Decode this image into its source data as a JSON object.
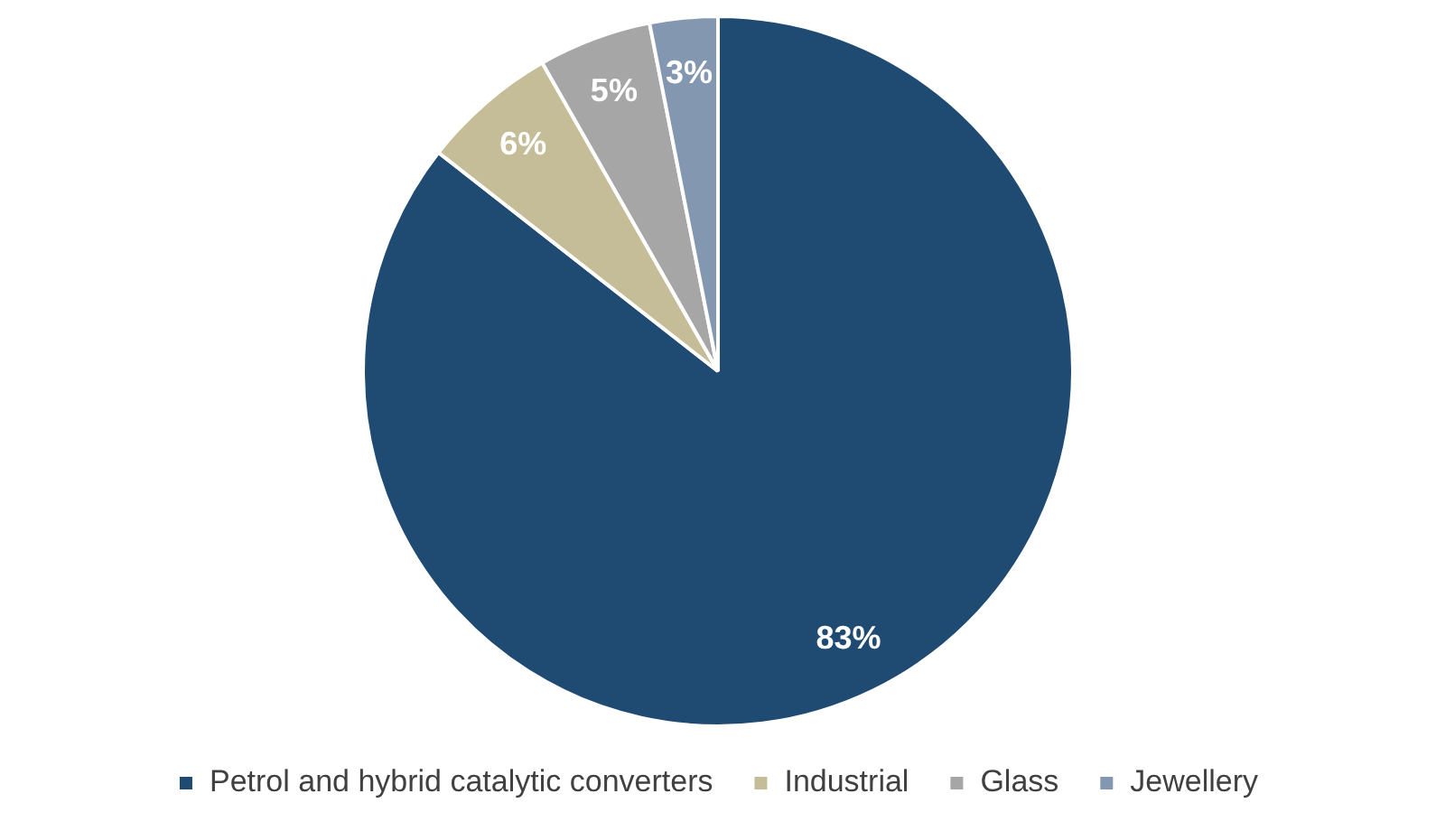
{
  "chart_data": {
    "type": "pie",
    "categories": [
      "Petrol and hybrid catalytic converters",
      "Industrial",
      "Glass",
      "Jewellery"
    ],
    "values": [
      83,
      6,
      5,
      3
    ],
    "colors": [
      "#1f4a72",
      "#c4bd97",
      "#a6a6a6",
      "#8497b0"
    ],
    "value_labels": [
      "83%",
      "6%",
      "5%",
      "3%"
    ],
    "legend": "bottom"
  }
}
